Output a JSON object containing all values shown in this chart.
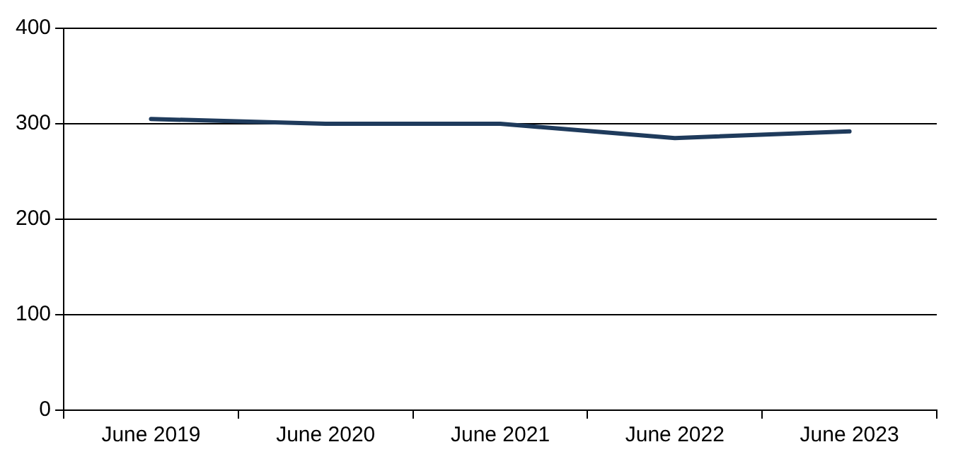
{
  "chart_data": {
    "type": "line",
    "categories": [
      "June 2019",
      "June 2020",
      "June 2021",
      "June 2022",
      "June 2023"
    ],
    "series": [
      {
        "color": "#1f3b5c",
        "values": [
          305,
          300,
          300,
          285,
          292
        ]
      }
    ],
    "ylim": [
      0,
      400
    ],
    "yticks": [
      0,
      100,
      200,
      300,
      400
    ],
    "grid": "y",
    "legend": false,
    "marker": "none",
    "line_style": "solid"
  }
}
